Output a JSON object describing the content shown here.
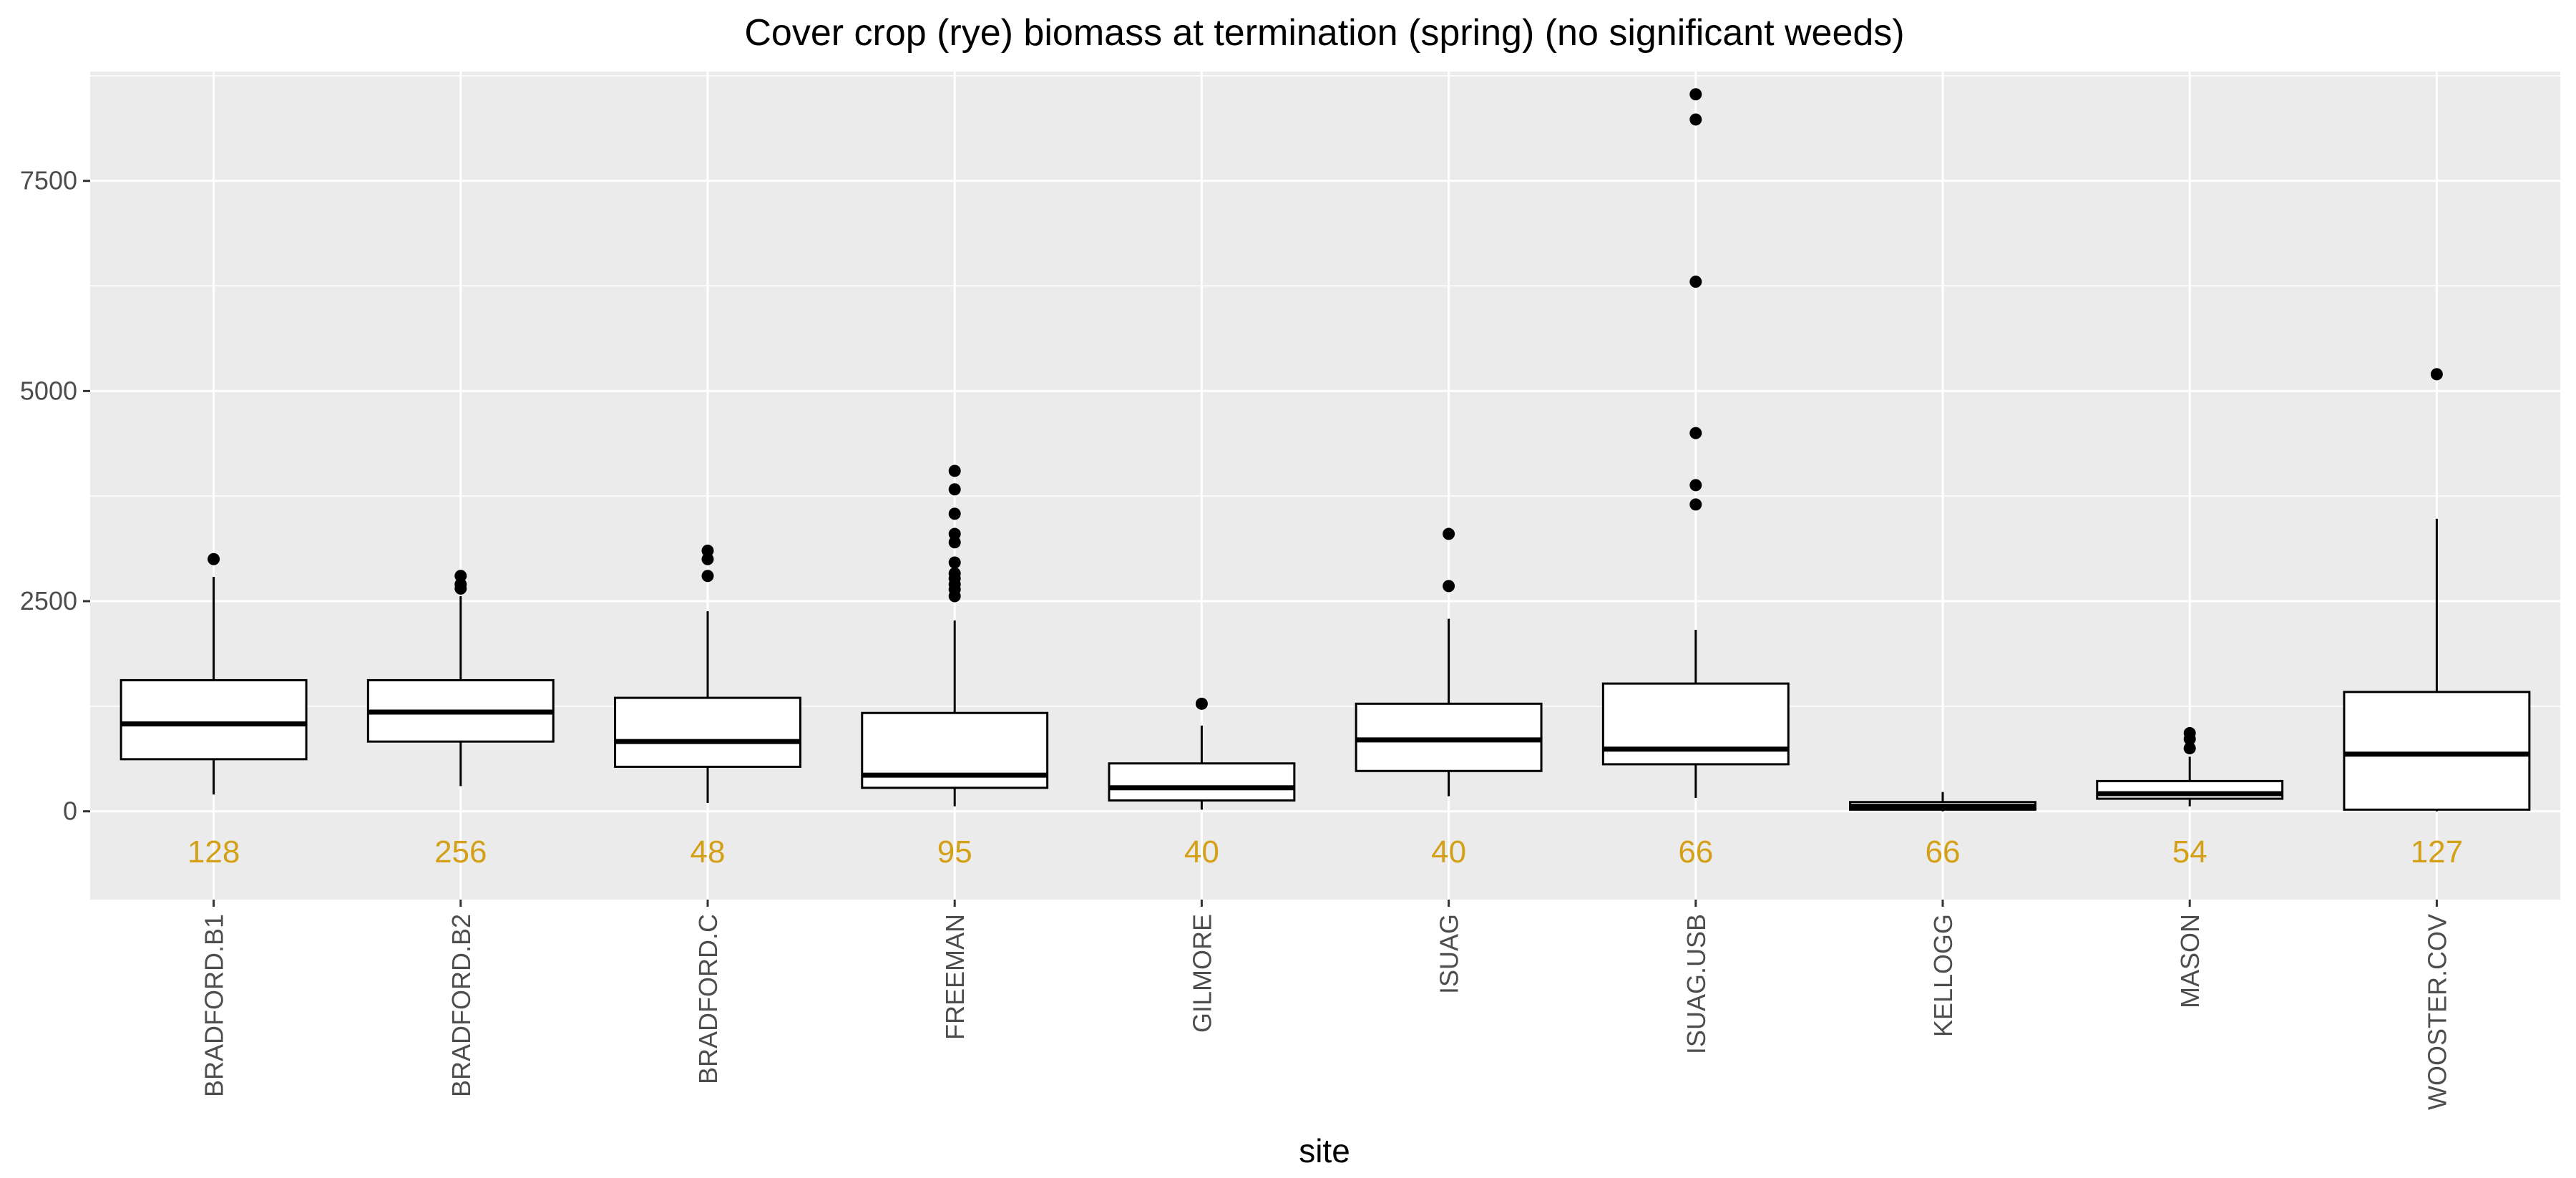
{
  "chart_data": {
    "type": "boxplot",
    "title": "Cover crop (rye) biomass at termination (spring) (no significant weeds)",
    "xlabel": "site",
    "ylabel": "",
    "ylim": [
      -1050,
      8800
    ],
    "yticks": [
      0,
      2500,
      5000,
      7500
    ],
    "ytick_labels": [
      "0",
      "2500",
      "5000",
      "7500"
    ],
    "grid": true,
    "background": "#ebebeb",
    "count_color": "#d4a017",
    "categories": [
      "BRADFORD.B1",
      "BRADFORD.B2",
      "BRADFORD.C",
      "FREEMAN",
      "GILMORE",
      "ISUAG",
      "ISUAG.USB",
      "KELLOGG",
      "MASON",
      "WOOSTER.COV"
    ],
    "counts": [
      "128",
      "256",
      "48",
      "95",
      "40",
      "40",
      "66",
      "66",
      "54",
      "127"
    ],
    "boxes": [
      {
        "q1": 620,
        "median": 1040,
        "q3": 1560,
        "whisker_low": 200,
        "whisker_high": 2790,
        "outliers": [
          3000
        ]
      },
      {
        "q1": 830,
        "median": 1180,
        "q3": 1560,
        "whisker_low": 300,
        "whisker_high": 2560,
        "outliers": [
          2650,
          2700,
          2800
        ]
      },
      {
        "q1": 530,
        "median": 830,
        "q3": 1350,
        "whisker_low": 100,
        "whisker_high": 2380,
        "outliers": [
          2800,
          3000,
          3100
        ]
      },
      {
        "q1": 280,
        "median": 430,
        "q3": 1170,
        "whisker_low": 60,
        "whisker_high": 2270,
        "outliers": [
          2560,
          2640,
          2700,
          2770,
          2830,
          2960,
          3200,
          3300,
          3540,
          3830,
          4050
        ]
      },
      {
        "q1": 130,
        "median": 280,
        "q3": 570,
        "whisker_low": 20,
        "whisker_high": 1020,
        "outliers": [
          1280
        ]
      },
      {
        "q1": 480,
        "median": 850,
        "q3": 1280,
        "whisker_low": 180,
        "whisker_high": 2290,
        "outliers": [
          2680,
          3300
        ]
      },
      {
        "q1": 560,
        "median": 740,
        "q3": 1520,
        "whisker_low": 160,
        "whisker_high": 2160,
        "outliers": [
          3650,
          3880,
          4500,
          6300,
          8230,
          8530
        ]
      },
      {
        "q1": 20,
        "median": 60,
        "q3": 110,
        "whisker_low": 0,
        "whisker_high": 230,
        "outliers": []
      },
      {
        "q1": 150,
        "median": 210,
        "q3": 360,
        "whisker_low": 60,
        "whisker_high": 650,
        "outliers": [
          750,
          860,
          930
        ]
      },
      {
        "q1": 20,
        "median": 680,
        "q3": 1420,
        "whisker_low": 0,
        "whisker_high": 3480,
        "outliers": [
          5200
        ]
      }
    ]
  }
}
